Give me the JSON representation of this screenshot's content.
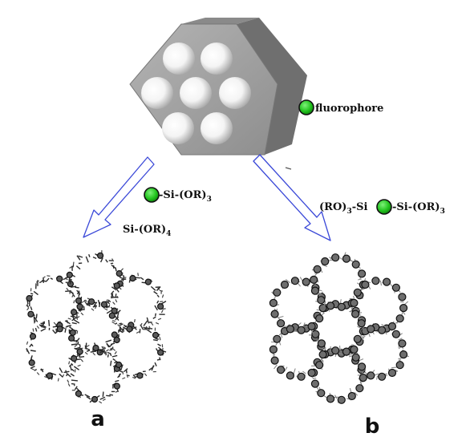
{
  "labels": {
    "fluorophore": "fluorophore",
    "silane_a": "-Si-(OR)",
    "silane_a_sub": "3",
    "teos": "Si-(OR)",
    "teos_sub": "4",
    "bridged_left": "(RO)",
    "bridged_left_sub": "3",
    "bridged_mid": "-Si",
    "bridged_right": "-Si-(OR)",
    "bridged_right_sub": "3",
    "panel_a": "a",
    "panel_b": "b"
  },
  "colors": {
    "fluorophore_fill": "#22c41e",
    "arrow_stroke": "#3b49d8",
    "hexagon_face": "#9e9e9e",
    "hexagon_side": "#6f6f6f"
  },
  "icons": {
    "fluorophore": "green-circle-icon",
    "pore": "white-circle"
  }
}
